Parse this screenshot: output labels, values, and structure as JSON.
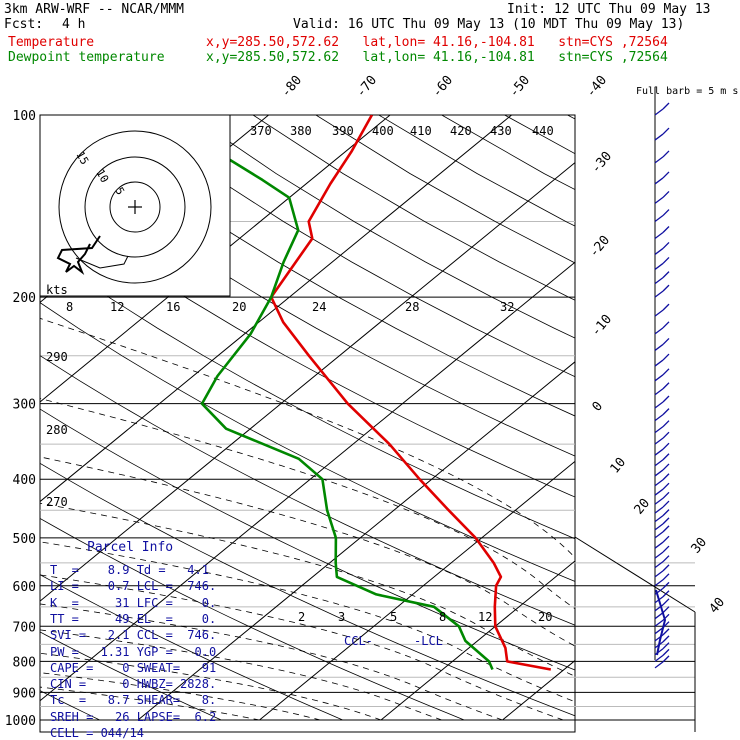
{
  "header": {
    "model": "3km ARW-WRF -- NCAR/MMM",
    "init": "Init: 12 UTC Thu 09 May 13",
    "fcst_label": "Fcst:",
    "fcst_value": "4 h",
    "valid": "Valid: 16 UTC Thu 09 May 13 (10 MDT Thu 09 May 13)",
    "temp_label": "Temperature",
    "temp_info": "x,y=285.50,572.62   lat,lon= 41.16,-104.81   stn=CYS ,72564",
    "dew_label": "Dewpoint temperature",
    "dew_info": "x,y=285.50,572.62   lat,lon= 41.16,-104.81   stn=CYS ,72564"
  },
  "colors": {
    "temperature": "#e00000",
    "dewpoint": "#008800",
    "annotations": "#1010a0",
    "wind": "#1010a0"
  },
  "chart_data": {
    "type": "line",
    "chart_kind": "skew-T log-P",
    "y_axis": {
      "scale": "log",
      "ticks": [
        100,
        200,
        300,
        400,
        500,
        600,
        700,
        800,
        900,
        1000
      ],
      "range": [
        1000,
        100
      ]
    },
    "isotherm_labels": [
      "-80",
      "-70",
      "-60",
      "-50",
      "-40",
      "-30",
      "-20",
      "-10",
      "0",
      "10",
      "20",
      "30",
      "40"
    ],
    "theta_labels": [
      "370",
      "380",
      "390",
      "400",
      "410",
      "420",
      "430",
      "440",
      "290",
      "280",
      "270"
    ],
    "mixing_ratio_labels": [
      "2",
      "3",
      "5",
      "8",
      "12",
      "20"
    ],
    "hodo_speed_labels": [
      "8",
      "12",
      "16",
      "20",
      "24",
      "28",
      "32"
    ],
    "hodo_units": "kts",
    "hodo_ring_labels": [
      "5",
      "10",
      "15"
    ],
    "series": [
      {
        "name": "Temperature",
        "points": [
          [
            825,
            8.9
          ],
          [
            800,
            4.5
          ],
          [
            760,
            3.0
          ],
          [
            700,
            0.0
          ],
          [
            650,
            -2.0
          ],
          [
            600,
            -4.0
          ],
          [
            580,
            -4.5
          ],
          [
            550,
            -6.5
          ],
          [
            500,
            -10.5
          ],
          [
            450,
            -15.5
          ],
          [
            400,
            -21.0
          ],
          [
            350,
            -27.0
          ],
          [
            300,
            -34.5
          ],
          [
            250,
            -42.5
          ],
          [
            220,
            -48.0
          ],
          [
            200,
            -51.5
          ],
          [
            175,
            -53.0
          ],
          [
            160,
            -54.0
          ],
          [
            150,
            -56.0
          ],
          [
            130,
            -58.0
          ],
          [
            115,
            -59.5
          ],
          [
            100,
            -61.5
          ]
        ]
      },
      {
        "name": "Dewpoint temperature",
        "points": [
          [
            825,
            4.1
          ],
          [
            800,
            3.0
          ],
          [
            740,
            -1.0
          ],
          [
            700,
            -3.0
          ],
          [
            650,
            -7.0
          ],
          [
            620,
            -13.0
          ],
          [
            580,
            -18.0
          ],
          [
            550,
            -19.5
          ],
          [
            500,
            -22.0
          ],
          [
            450,
            -25.5
          ],
          [
            400,
            -29.0
          ],
          [
            370,
            -33.0
          ],
          [
            330,
            -42.0
          ],
          [
            300,
            -46.5
          ],
          [
            270,
            -48.0
          ],
          [
            230,
            -49.5
          ],
          [
            200,
            -51.5
          ],
          [
            175,
            -54.0
          ],
          [
            155,
            -56.0
          ],
          [
            137,
            -60.0
          ],
          [
            128,
            -64.0
          ],
          [
            118,
            -69.0
          ],
          [
            112,
            -72.5
          ],
          [
            100,
            -77.0
          ]
        ]
      }
    ],
    "annotations": [
      "CCL-",
      "-LCL"
    ],
    "wind_label": "Full barb = 5 m s-1"
  },
  "parcel_info": {
    "title": "Parcel Info",
    "rows": [
      "T  =    8.9 Td =   4.1",
      "LI =    0.7 LCL =  746.",
      "K  =     31 LFC =    0.",
      "TT =     49 EL  =    0.",
      "SVI =   2.1 CCL =  746.",
      "PW =   1.31 YGP =   0.0",
      "CAPE =    0 SWEAT=   91",
      "CIN =     0 HWBZ= 2828.",
      "Tc  =   8.7 SHEAR=   8.",
      "SREH =   26 LAPSE=  6.2",
      "CELL = 044/14"
    ]
  }
}
